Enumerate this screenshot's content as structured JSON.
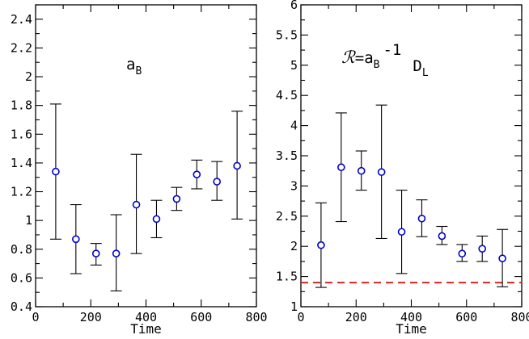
{
  "chart_data": [
    {
      "type": "scatter",
      "panel": "left",
      "title": "",
      "xlabel": "Time",
      "ylabel": "",
      "xlim": [
        0,
        800
      ],
      "ylim": [
        0.4,
        2.5
      ],
      "xticks": [
        0,
        200,
        400,
        600,
        800
      ],
      "yticks": [
        0.4,
        0.6,
        0.8,
        1.0,
        1.2,
        1.4,
        1.6,
        1.8,
        2.0,
        2.2,
        2.4
      ],
      "xtick_labels": [
        "0",
        "200",
        "400",
        "600",
        "800"
      ],
      "ytick_labels": [
        "0.4",
        "0.6",
        "0.8",
        "1",
        "1.2",
        "1.4",
        "1.6",
        "1.8",
        "2",
        "2.2",
        "2.4"
      ],
      "annotation": {
        "main": "a",
        "sub": "B"
      },
      "series": [
        {
          "name": "a_B",
          "marker": "open-circle",
          "color": "#0000cc",
          "x": [
            73,
            146,
            219,
            292,
            365,
            438,
            511,
            584,
            657,
            730
          ],
          "y": [
            1.34,
            0.87,
            0.77,
            0.77,
            1.11,
            1.01,
            1.15,
            1.32,
            1.27,
            1.38
          ],
          "err_low": [
            0.87,
            0.63,
            0.69,
            0.51,
            0.77,
            0.88,
            1.07,
            1.22,
            1.14,
            1.01
          ],
          "err_high": [
            1.81,
            1.11,
            0.84,
            1.04,
            1.46,
            1.14,
            1.23,
            1.42,
            1.41,
            1.76
          ]
        }
      ]
    },
    {
      "type": "scatter",
      "panel": "right",
      "title": "",
      "xlabel": "Time",
      "ylabel": "",
      "xlim": [
        0,
        800
      ],
      "ylim": [
        1,
        6
      ],
      "xticks": [
        0,
        200,
        400,
        600,
        800
      ],
      "yticks": [
        1,
        1.5,
        2,
        2.5,
        3,
        3.5,
        4,
        4.5,
        5,
        5.5,
        6
      ],
      "xtick_labels": [
        "0",
        "200",
        "400",
        "600",
        "800"
      ],
      "ytick_labels": [
        "1",
        "1.5",
        "2",
        "2.5",
        "3",
        "3.5",
        "4",
        "4.5",
        "5",
        "5.5",
        "6"
      ],
      "annotation": {
        "script": "ℛ",
        "eq": "=a",
        "sub1": "B",
        "sup": "-1",
        "main2": "D",
        "sub2": "L"
      },
      "reference_line": {
        "y": 1.4,
        "color": "#dd2222",
        "style": "dashed"
      },
      "series": [
        {
          "name": "R",
          "marker": "open-circle",
          "color": "#0000cc",
          "x": [
            73,
            146,
            219,
            292,
            365,
            438,
            511,
            584,
            657,
            730
          ],
          "y": [
            2.02,
            3.31,
            3.25,
            3.23,
            2.24,
            2.46,
            2.17,
            1.88,
            1.96,
            1.8
          ],
          "err_low": [
            1.32,
            2.41,
            2.93,
            2.13,
            1.55,
            2.16,
            2.03,
            1.75,
            1.75,
            1.33
          ],
          "err_high": [
            2.72,
            4.21,
            3.58,
            4.34,
            2.93,
            2.77,
            2.33,
            2.03,
            2.17,
            2.28
          ]
        }
      ]
    }
  ]
}
